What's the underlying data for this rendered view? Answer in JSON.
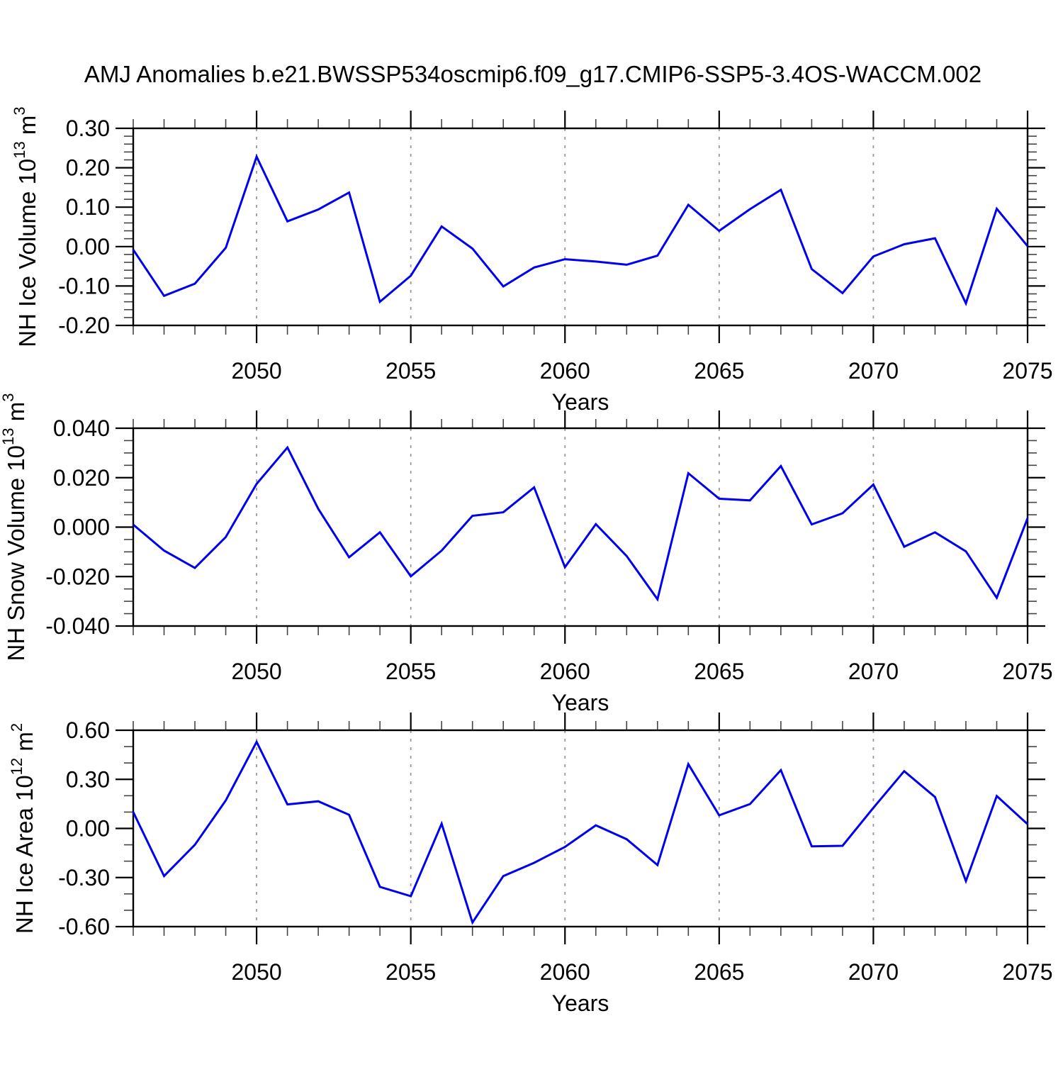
{
  "title": "AMJ Anomalies b.e21.BWSSP534oscmip6.f09_g17.CMIP6-SSP5-3.4OS-WACCM.002",
  "colors": {
    "line": "#0000EE",
    "axis": "#000000",
    "grid": "#999999",
    "minor_tick": "#444444"
  },
  "xaxis": {
    "label": "Years",
    "start": 2046,
    "end": 2075,
    "major_ticks": [
      2050,
      2055,
      2060,
      2065,
      2070,
      2075
    ],
    "tick_labels": [
      "2050",
      "2055",
      "2060",
      "2065",
      "2070",
      "2075"
    ],
    "gridlines": [
      2050,
      2055,
      2060,
      2065,
      2070
    ]
  },
  "chart_data": [
    {
      "id": "nh-ice-volume",
      "type": "line",
      "ylabel": "NH Ice Volume 10^13 m^3",
      "ylabel_parts": [
        {
          "t": "NH Ice Volume 10"
        },
        {
          "sup": "13"
        },
        {
          "t": " m"
        },
        {
          "sup": "3"
        }
      ],
      "xlabel": "Years",
      "ylim": [
        -0.2,
        0.3
      ],
      "ymajor_step": 0.1,
      "yminor_step": 0.02,
      "ytick_values": [
        0.3,
        0.2,
        0.1,
        0.0,
        -0.1,
        -0.2
      ],
      "ytick_labels": [
        "0.30",
        "0.20",
        "0.10",
        "0.00",
        "-0.10",
        "-0.20"
      ],
      "legend": "none",
      "grid": "vertical-dashed",
      "x": [
        2046,
        2047,
        2048,
        2049,
        2050,
        2051,
        2052,
        2053,
        2054,
        2055,
        2056,
        2057,
        2058,
        2059,
        2060,
        2061,
        2062,
        2063,
        2064,
        2065,
        2066,
        2067,
        2068,
        2069,
        2070,
        2071,
        2072,
        2073,
        2074,
        2075
      ],
      "values": [
        -0.008,
        -0.125,
        -0.094,
        -0.003,
        0.228,
        0.064,
        0.094,
        0.137,
        -0.14,
        -0.074,
        0.051,
        -0.005,
        -0.101,
        -0.053,
        -0.032,
        -0.038,
        -0.046,
        -0.023,
        0.106,
        0.04,
        0.095,
        0.144,
        -0.057,
        -0.118,
        -0.025,
        0.006,
        0.021,
        -0.144,
        0.096,
        0.001
      ]
    },
    {
      "id": "nh-snow-volume",
      "type": "line",
      "ylabel": "NH Snow Volume 10^13 m^3",
      "ylabel_parts": [
        {
          "t": "NH Snow Volume 10"
        },
        {
          "sup": "13"
        },
        {
          "t": " m"
        },
        {
          "sup": "3"
        }
      ],
      "xlabel": "Years",
      "ylim": [
        -0.04,
        0.04
      ],
      "ymajor_step": 0.02,
      "yminor_step": 0.005,
      "ytick_values": [
        0.04,
        0.02,
        0.0,
        -0.02,
        -0.04
      ],
      "ytick_labels": [
        "0.040",
        "0.020",
        "0.000",
        "-0.020",
        "-0.040"
      ],
      "legend": "none",
      "grid": "vertical-dashed",
      "x": [
        2046,
        2047,
        2048,
        2049,
        2050,
        2051,
        2052,
        2053,
        2054,
        2055,
        2056,
        2057,
        2058,
        2059,
        2060,
        2061,
        2062,
        2063,
        2064,
        2065,
        2066,
        2067,
        2068,
        2069,
        2070,
        2071,
        2072,
        2073,
        2074,
        2075
      ],
      "values": [
        0.001,
        -0.0095,
        -0.0165,
        -0.004,
        0.0175,
        0.0322,
        0.0074,
        -0.0122,
        -0.0021,
        -0.0199,
        -0.0095,
        0.0046,
        0.006,
        0.0161,
        -0.0162,
        0.0012,
        -0.0117,
        -0.0292,
        0.0218,
        0.0115,
        0.0108,
        0.0247,
        0.0011,
        0.0056,
        0.0172,
        -0.0079,
        -0.0021,
        -0.0098,
        -0.0286,
        0.0036
      ]
    },
    {
      "id": "nh-ice-area",
      "type": "line",
      "ylabel": "NH Ice Area 10^12 m^2",
      "ylabel_parts": [
        {
          "t": "NH Ice Area 10"
        },
        {
          "sup": "12"
        },
        {
          "t": " m"
        },
        {
          "sup": "2"
        }
      ],
      "xlabel": "Years",
      "ylim": [
        -0.6,
        0.6
      ],
      "ymajor_step": 0.3,
      "yminor_step": 0.1,
      "ytick_values": [
        0.6,
        0.3,
        0.0,
        -0.3,
        -0.6
      ],
      "ytick_labels": [
        "0.60",
        "0.30",
        "0.00",
        "-0.30",
        "-0.60"
      ],
      "legend": "none",
      "grid": "vertical-dashed",
      "x": [
        2046,
        2047,
        2048,
        2049,
        2050,
        2051,
        2052,
        2053,
        2054,
        2055,
        2056,
        2057,
        2058,
        2059,
        2060,
        2061,
        2062,
        2063,
        2064,
        2065,
        2066,
        2067,
        2068,
        2069,
        2070,
        2071,
        2072,
        2073,
        2074,
        2075
      ],
      "values": [
        0.1,
        -0.291,
        -0.1,
        0.171,
        0.529,
        0.147,
        0.166,
        0.083,
        -0.357,
        -0.414,
        0.029,
        -0.575,
        -0.291,
        -0.21,
        -0.113,
        0.019,
        -0.066,
        -0.224,
        0.393,
        0.08,
        0.149,
        0.356,
        -0.109,
        -0.106,
        0.126,
        0.35,
        0.192,
        -0.322,
        0.198,
        0.026
      ]
    }
  ]
}
